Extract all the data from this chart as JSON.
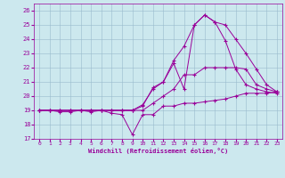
{
  "xlabel": "Windchill (Refroidissement éolien,°C)",
  "xlim": [
    -0.5,
    23.5
  ],
  "ylim": [
    17,
    26.5
  ],
  "yticks": [
    17,
    18,
    19,
    20,
    21,
    22,
    23,
    24,
    25,
    26
  ],
  "xticks": [
    0,
    1,
    2,
    3,
    4,
    5,
    6,
    7,
    8,
    9,
    10,
    11,
    12,
    13,
    14,
    15,
    16,
    17,
    18,
    19,
    20,
    21,
    22,
    23
  ],
  "bg_color": "#cce8ee",
  "line_color": "#990099",
  "grid_color": "#99bbcc",
  "lines": [
    {
      "x": [
        0,
        1,
        2,
        3,
        4,
        5,
        6,
        7,
        8,
        9,
        10,
        11,
        12,
        13,
        14,
        15,
        16,
        17,
        18,
        19,
        20,
        21,
        22,
        23
      ],
      "y": [
        19.0,
        19.0,
        18.9,
        18.9,
        19.0,
        18.9,
        19.0,
        18.8,
        18.7,
        17.3,
        18.7,
        18.7,
        19.3,
        19.3,
        19.5,
        19.5,
        19.6,
        19.7,
        19.8,
        20.0,
        20.2,
        20.2,
        20.2,
        20.3
      ]
    },
    {
      "x": [
        0,
        1,
        2,
        3,
        4,
        5,
        6,
        7,
        8,
        9,
        10,
        11,
        12,
        13,
        14,
        15,
        16,
        17,
        18,
        19,
        20,
        21,
        22,
        23
      ],
      "y": [
        19.0,
        19.0,
        19.0,
        19.0,
        19.0,
        19.0,
        19.0,
        19.0,
        19.0,
        19.0,
        19.3,
        20.6,
        21.0,
        22.3,
        20.5,
        25.0,
        25.7,
        25.2,
        25.0,
        24.0,
        23.0,
        21.9,
        20.8,
        20.3
      ]
    },
    {
      "x": [
        0,
        1,
        2,
        3,
        4,
        5,
        6,
        7,
        8,
        9,
        10,
        11,
        12,
        13,
        14,
        15,
        16,
        17,
        18,
        19,
        20,
        21,
        22,
        23
      ],
      "y": [
        19.0,
        19.0,
        19.0,
        19.0,
        19.0,
        19.0,
        19.0,
        19.0,
        19.0,
        19.0,
        19.4,
        20.5,
        21.0,
        22.5,
        23.5,
        25.0,
        25.7,
        25.2,
        23.9,
        21.9,
        20.8,
        20.5,
        20.3,
        20.2
      ]
    },
    {
      "x": [
        0,
        1,
        2,
        3,
        4,
        5,
        6,
        7,
        8,
        9,
        10,
        11,
        12,
        13,
        14,
        15,
        16,
        17,
        18,
        19,
        20,
        21,
        22,
        23
      ],
      "y": [
        19.0,
        19.0,
        19.0,
        19.0,
        19.0,
        19.0,
        19.0,
        19.0,
        19.0,
        19.0,
        19.0,
        19.5,
        20.0,
        20.5,
        21.5,
        21.5,
        22.0,
        22.0,
        22.0,
        22.0,
        21.9,
        20.8,
        20.5,
        20.3
      ]
    }
  ]
}
